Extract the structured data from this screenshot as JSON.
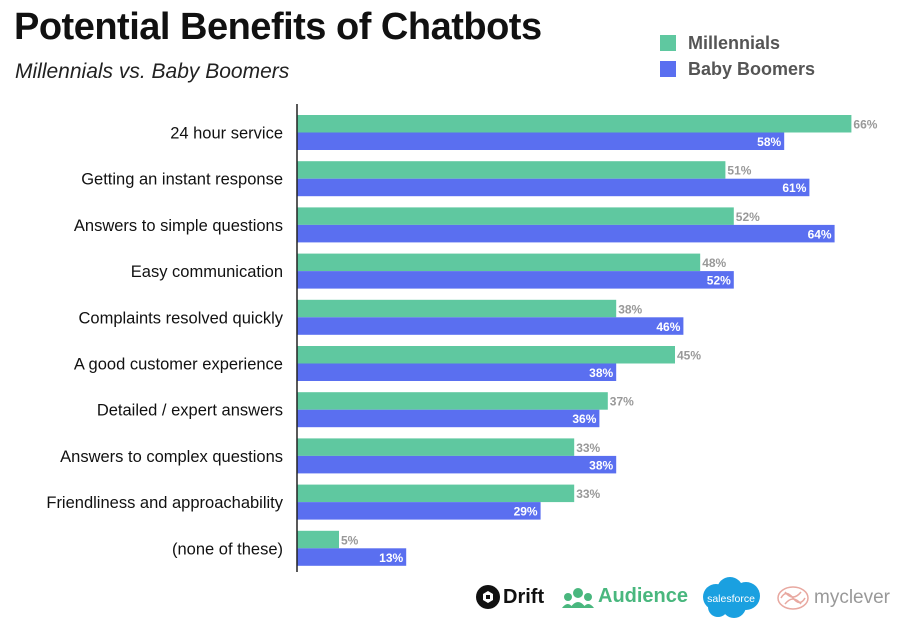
{
  "header": {
    "title": "Potential Benefits of Chatbots",
    "subtitle": "Millennials vs. Baby Boomers"
  },
  "legend": {
    "items": [
      {
        "label": "Millennials",
        "color": "#5fc8a0"
      },
      {
        "label": "Baby Boomers",
        "color": "#5a6ff0"
      }
    ],
    "placement": "top-right"
  },
  "chart_data": {
    "type": "bar",
    "orientation": "horizontal",
    "title": "Potential Benefits of Chatbots",
    "subtitle": "Millennials vs. Baby Boomers",
    "categories": [
      "24 hour service",
      "Getting an instant response",
      "Answers to simple questions",
      "Easy communication",
      "Complaints resolved quickly",
      "A good customer experience",
      "Detailed / expert answers",
      "Answers to complex questions",
      "Friendliness and approachability",
      "(none of these)"
    ],
    "series": [
      {
        "name": "Millennials",
        "color": "#5fc8a0",
        "values": [
          66,
          51,
          52,
          48,
          38,
          45,
          37,
          33,
          33,
          5
        ]
      },
      {
        "name": "Baby Boomers",
        "color": "#5a6ff0",
        "values": [
          58,
          61,
          64,
          52,
          46,
          38,
          36,
          38,
          29,
          13
        ]
      }
    ],
    "value_suffix": "%",
    "xlim": [
      0,
      100
    ],
    "grid": false,
    "legend": "top-right"
  },
  "footer": {
    "logos": [
      {
        "icon": "drift-logo-icon",
        "text": "Drift"
      },
      {
        "icon": "audience-logo-icon",
        "text": "Audience"
      },
      {
        "icon": "salesforce-logo-icon",
        "text": "salesforce"
      },
      {
        "icon": "myclever-logo-icon",
        "text": "myclever"
      }
    ]
  }
}
